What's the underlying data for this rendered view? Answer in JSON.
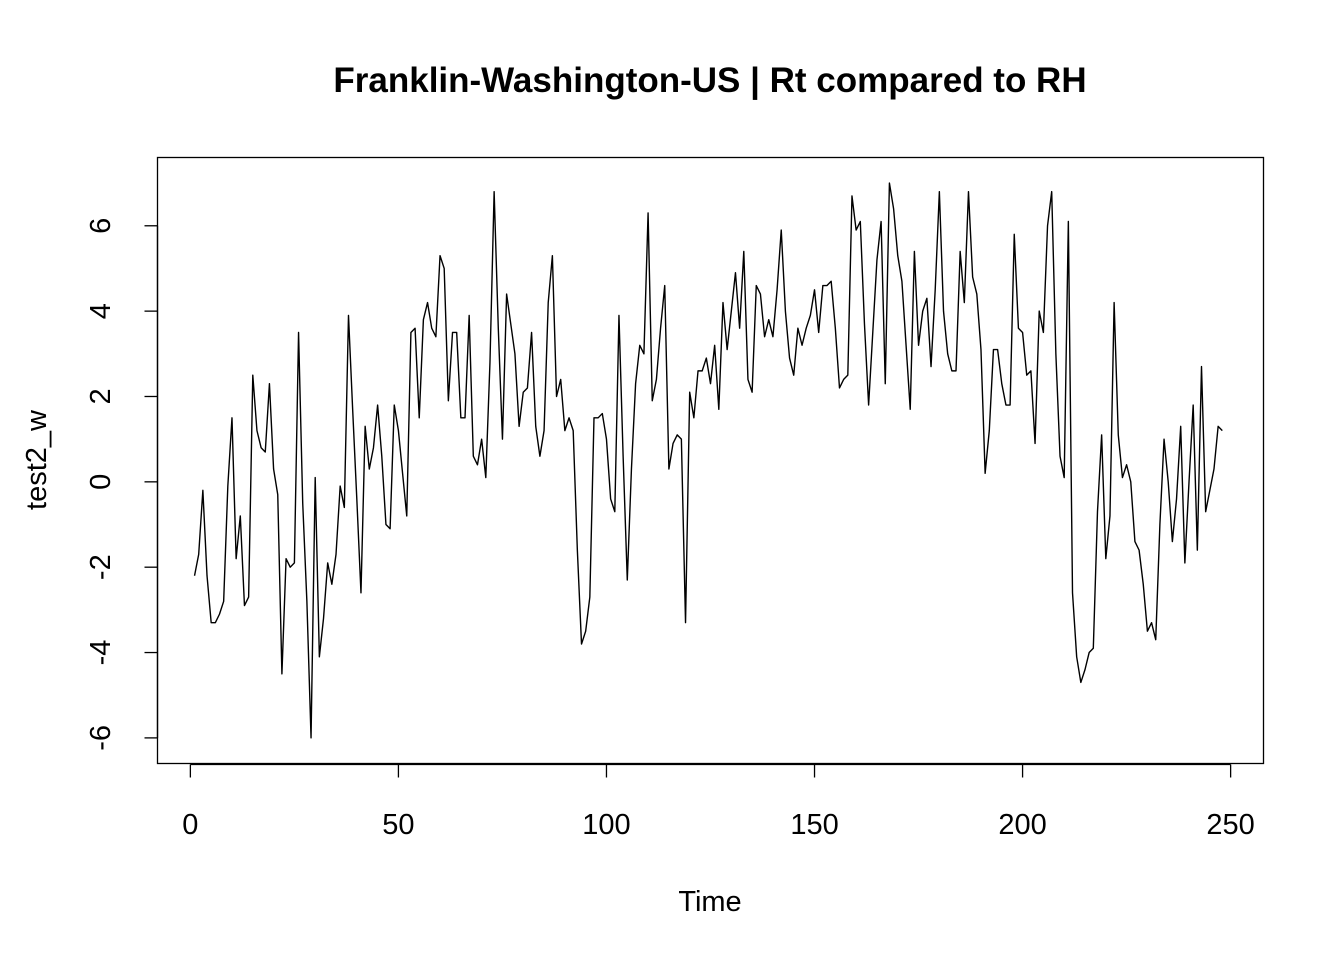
{
  "chart_data": {
    "type": "line",
    "title": "Franklin-Washington-US | Rt compared to RH",
    "xlabel": "Time",
    "ylabel": "test2_w",
    "xlim": [
      -7.9,
      257.9
    ],
    "ylim": [
      -6.6,
      7.6
    ],
    "x_ticks": [
      0,
      50,
      100,
      150,
      200,
      250
    ],
    "y_ticks": [
      -6,
      -4,
      -2,
      0,
      2,
      4,
      6
    ],
    "grid": false,
    "line_color": "#000000",
    "series": [
      {
        "x": [
          1,
          2,
          3,
          4,
          5,
          6,
          7,
          8,
          9,
          10,
          11,
          12,
          13,
          14,
          15,
          16,
          17,
          18,
          19,
          20,
          21,
          22,
          23,
          24,
          25,
          26,
          27,
          28,
          29,
          30,
          31,
          32,
          33,
          34,
          35,
          36,
          37,
          38,
          39,
          40,
          41,
          42,
          43,
          44,
          45,
          46,
          47,
          48,
          49,
          50,
          51,
          52,
          53,
          54,
          55,
          56,
          57,
          58,
          59,
          60,
          61,
          62,
          63,
          64,
          65,
          66,
          67,
          68,
          69,
          70,
          71,
          72,
          73,
          74,
          75,
          76,
          77,
          78,
          79,
          80,
          81,
          82,
          83,
          84,
          85,
          86,
          87,
          88,
          89,
          90,
          91,
          92,
          93,
          94,
          95,
          96,
          97,
          98,
          99,
          100,
          101,
          102,
          103,
          104,
          105,
          106,
          107,
          108,
          109,
          110,
          111,
          112,
          113,
          114,
          115,
          116,
          117,
          118,
          119,
          120,
          121,
          122,
          123,
          124,
          125,
          126,
          127,
          128,
          129,
          130,
          131,
          132,
          133,
          134,
          135,
          136,
          137,
          138,
          139,
          140,
          141,
          142,
          143,
          144,
          145,
          146,
          147,
          148,
          149,
          150,
          151,
          152,
          153,
          154,
          155,
          156,
          157,
          158,
          159,
          160,
          161,
          162,
          163,
          164,
          165,
          166,
          167,
          168,
          169,
          170,
          171,
          172,
          173,
          174,
          175,
          176,
          177,
          178,
          179,
          180,
          181,
          182,
          183,
          184,
          185,
          186,
          187,
          188,
          189,
          190,
          191,
          192,
          193,
          194,
          195,
          196,
          197,
          198,
          199,
          200,
          201,
          202,
          203,
          204,
          205,
          206,
          207,
          208,
          209,
          210,
          211,
          212,
          213,
          214,
          215,
          216,
          217,
          218,
          219,
          220,
          221,
          222,
          223,
          224,
          225,
          226,
          227,
          228,
          229,
          230,
          231,
          232,
          233,
          234,
          235,
          236,
          237,
          238,
          239,
          240,
          241,
          242,
          243,
          244,
          245,
          246,
          247,
          248
        ],
        "values": [
          -2.2,
          -1.7,
          -0.2,
          -2.2,
          -3.3,
          -3.3,
          -3.1,
          -2.8,
          -0.1,
          1.5,
          -1.8,
          -0.8,
          -2.9,
          -2.7,
          2.5,
          1.2,
          0.8,
          0.7,
          2.3,
          0.3,
          -0.3,
          -4.5,
          -1.8,
          -2.0,
          -1.9,
          3.5,
          -0.5,
          -2.8,
          -6.0,
          0.1,
          -4.1,
          -3.2,
          -1.9,
          -2.4,
          -1.7,
          -0.1,
          -0.6,
          3.9,
          1.7,
          -0.4,
          -2.6,
          1.3,
          0.3,
          0.8,
          1.8,
          0.6,
          -1.0,
          -1.1,
          1.8,
          1.2,
          0.2,
          -0.8,
          3.5,
          3.6,
          1.5,
          3.8,
          4.2,
          3.6,
          3.4,
          5.3,
          5.0,
          1.9,
          3.5,
          3.5,
          1.5,
          1.5,
          3.9,
          0.6,
          0.4,
          1.0,
          0.1,
          2.8,
          6.8,
          3.6,
          1.0,
          4.4,
          3.7,
          3.0,
          1.3,
          2.1,
          2.2,
          3.5,
          1.3,
          0.6,
          1.2,
          4.2,
          5.3,
          2.0,
          2.4,
          1.2,
          1.5,
          1.2,
          -1.6,
          -3.8,
          -3.5,
          -2.7,
          1.5,
          1.5,
          1.6,
          1.0,
          -0.4,
          -0.7,
          3.9,
          0.6,
          -2.3,
          0.3,
          2.3,
          3.2,
          3.0,
          6.3,
          1.9,
          2.4,
          3.6,
          4.6,
          0.3,
          0.9,
          1.1,
          1.0,
          -3.3,
          2.1,
          1.5,
          2.6,
          2.6,
          2.9,
          2.3,
          3.2,
          1.7,
          4.2,
          3.1,
          4.0,
          4.9,
          3.6,
          5.4,
          2.4,
          2.1,
          4.6,
          4.4,
          3.4,
          3.8,
          3.4,
          4.5,
          5.9,
          4.0,
          2.9,
          2.5,
          3.6,
          3.2,
          3.6,
          3.9,
          4.5,
          3.5,
          4.6,
          4.6,
          4.7,
          3.6,
          2.2,
          2.4,
          2.5,
          6.7,
          5.9,
          6.1,
          3.7,
          1.8,
          3.5,
          5.2,
          6.1,
          2.3,
          7.0,
          6.4,
          5.3,
          4.7,
          3.2,
          1.7,
          5.4,
          3.2,
          4.0,
          4.3,
          2.7,
          4.5,
          6.8,
          4.0,
          3.0,
          2.6,
          2.6,
          5.4,
          4.2,
          6.8,
          4.8,
          4.4,
          3.1,
          0.2,
          1.2,
          3.1,
          3.1,
          2.3,
          1.8,
          1.8,
          5.8,
          3.6,
          3.5,
          2.5,
          2.6,
          0.9,
          4.0,
          3.5,
          6.0,
          6.8,
          3.0,
          0.6,
          0.1,
          6.1,
          -2.6,
          -4.1,
          -4.7,
          -4.4,
          -4.0,
          -3.9,
          -0.7,
          1.1,
          -1.8,
          -0.8,
          4.2,
          1.1,
          0.1,
          0.4,
          0.0,
          -1.4,
          -1.6,
          -2.4,
          -3.5,
          -3.3,
          -3.7,
          -1.0,
          1.0,
          0.0,
          -1.4,
          -0.4,
          1.3,
          -1.9,
          0.0,
          1.8,
          -1.6,
          2.7,
          -0.7,
          -0.2,
          0.3,
          1.3,
          1.2
        ]
      }
    ]
  }
}
